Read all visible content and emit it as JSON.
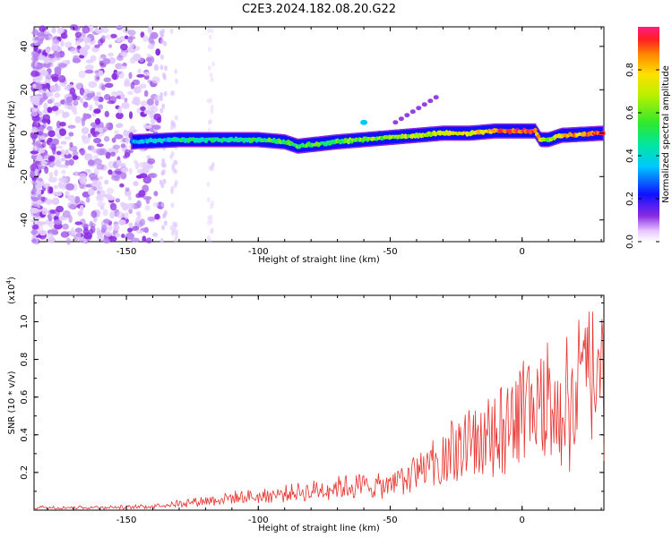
{
  "title": "C2E3.2024.182.08.20.G22",
  "chart_data": [
    {
      "type": "heatmap",
      "xlabel": "Height of straight line (km)",
      "ylabel": "Frequency (Hz)",
      "xlim": [
        -185,
        31
      ],
      "ylim": [
        -50,
        49
      ],
      "xticks": [
        -150,
        -100,
        -50,
        0
      ],
      "yticks": [
        -40,
        -20,
        0,
        20,
        40
      ],
      "colorbar": {
        "label": "Normalized spectral amplitude",
        "range": [
          0,
          1
        ],
        "ticks": [
          0.0,
          0.2,
          0.4,
          0.6,
          0.8
        ],
        "colormap": "rainbow"
      },
      "signal_trace": {
        "x": [
          -148,
          -130,
          -110,
          -100,
          -90,
          -85,
          -70,
          -60,
          -50,
          -40,
          -30,
          -20,
          -10,
          0,
          5,
          7,
          10,
          15,
          31
        ],
        "frequency": [
          -4,
          -3,
          -3,
          -3,
          -4,
          -6,
          -4,
          -3,
          -2,
          -1,
          0,
          0,
          1,
          1,
          1,
          -3,
          -3,
          -1,
          0
        ],
        "amplitude": [
          0.3,
          0.45,
          0.45,
          0.5,
          0.55,
          0.55,
          0.55,
          0.6,
          0.6,
          0.65,
          0.7,
          0.75,
          0.85,
          0.95,
          0.95,
          0.7,
          0.6,
          0.8,
          0.9
        ]
      }
    },
    {
      "type": "line",
      "xlabel": "Height of straight line (km)",
      "ylabel": "SNR (10 * v/v)",
      "ymultiplier": "(x10",
      "ymultiplier_exp": "4",
      "ymultiplier_close": ")",
      "xlim": [
        -185,
        31
      ],
      "ylim": [
        0,
        1.14
      ],
      "xticks": [
        -150,
        -100,
        -50,
        0
      ],
      "yticks": [
        0.2,
        0.4,
        0.6,
        0.8,
        1.0
      ],
      "color": "#e8322e",
      "envelope": {
        "x": [
          -185,
          -150,
          -140,
          -130,
          -120,
          -110,
          -100,
          -90,
          -80,
          -70,
          -60,
          -50,
          -45,
          -40,
          -35,
          -30,
          -25,
          -20,
          -15,
          -10,
          -5,
          0,
          5,
          10,
          15,
          20,
          25,
          31
        ],
        "y": [
          0.02,
          0.02,
          0.03,
          0.05,
          0.07,
          0.09,
          0.1,
          0.12,
          0.14,
          0.17,
          0.18,
          0.17,
          0.22,
          0.27,
          0.33,
          0.4,
          0.46,
          0.5,
          0.56,
          0.62,
          0.68,
          0.72,
          0.78,
          0.84,
          0.88,
          0.92,
          0.96,
          1.0
        ]
      }
    }
  ]
}
